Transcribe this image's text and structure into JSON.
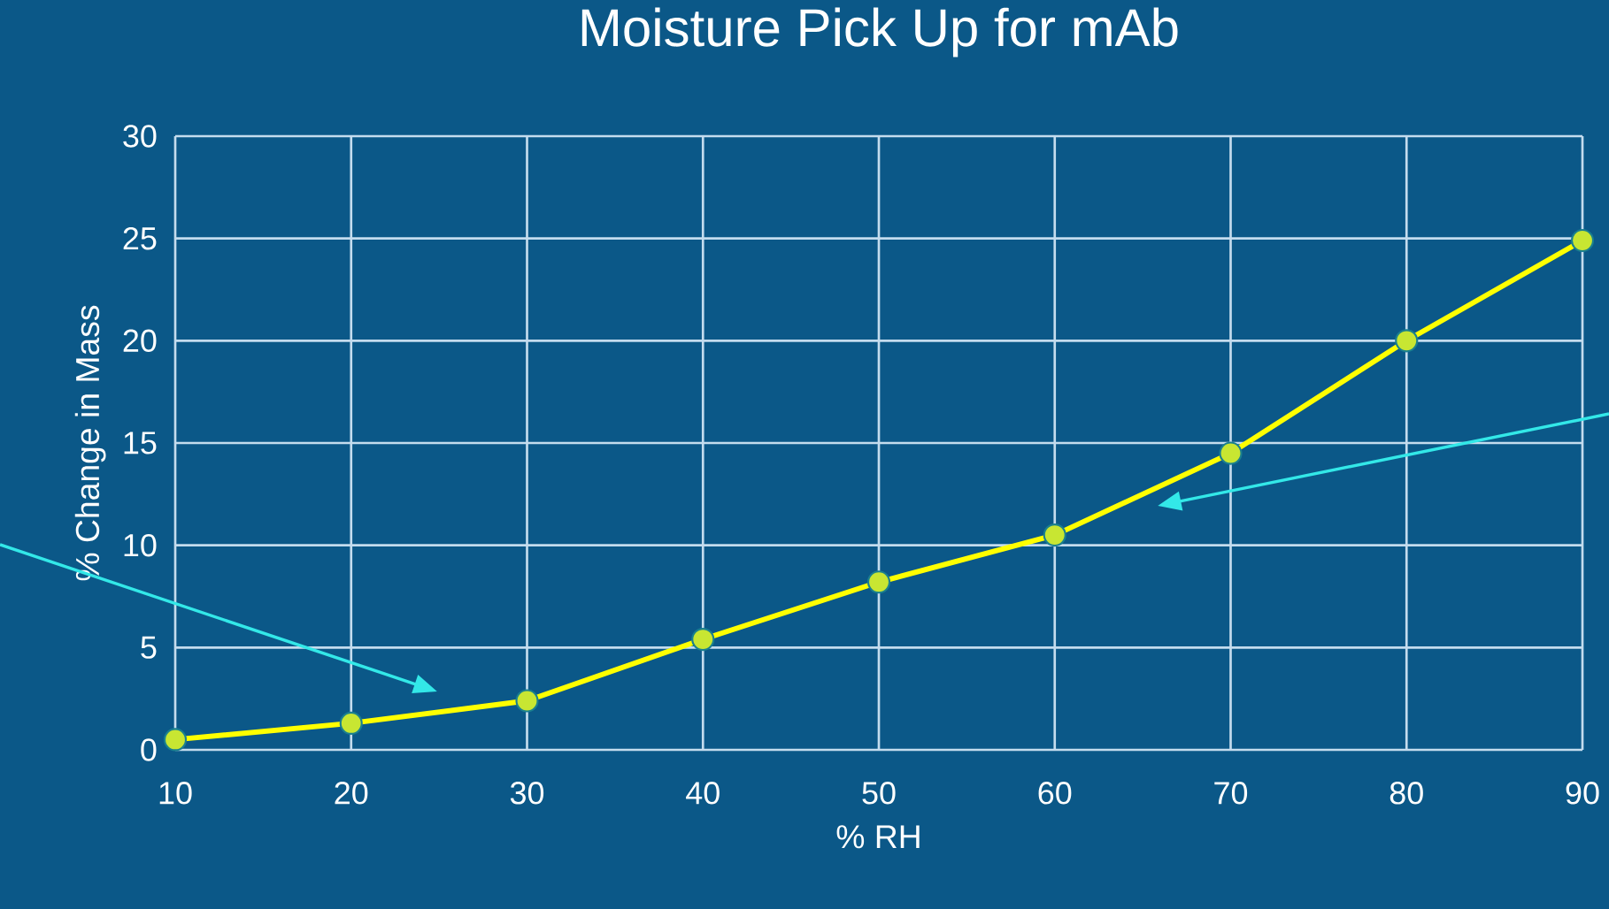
{
  "chart_data": {
    "type": "line",
    "title": "Moisture Pick Up for mAb",
    "xlabel": "% RH",
    "ylabel": "% Change in Mass",
    "x": [
      10,
      20,
      30,
      40,
      50,
      60,
      70,
      80,
      90
    ],
    "series": [
      {
        "color": "#ffff00",
        "values": [
          0.5,
          1.3,
          2.4,
          5.4,
          8.2,
          10.5,
          14.5,
          20,
          24.9
        ]
      }
    ],
    "xlim": [
      10,
      90
    ],
    "xticks": [
      10,
      20,
      30,
      40,
      50,
      60,
      70,
      80,
      90
    ],
    "ylim": [
      0,
      30
    ],
    "yticks": [
      0,
      5,
      10,
      15,
      20,
      25,
      30
    ],
    "grid": true,
    "marker": "circle",
    "line_style": "solid"
  }
}
